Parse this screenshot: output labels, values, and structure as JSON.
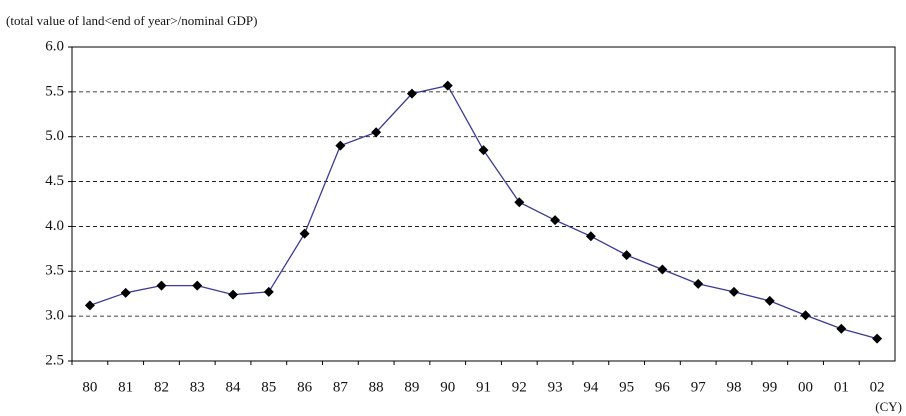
{
  "chart_data": {
    "type": "line",
    "y_axis_label": "(total value of land<end of year>/nominal GDP)",
    "x_axis_label": "(CY)",
    "categories": [
      "80",
      "81",
      "82",
      "83",
      "84",
      "85",
      "86",
      "87",
      "88",
      "89",
      "90",
      "91",
      "92",
      "93",
      "94",
      "95",
      "96",
      "97",
      "98",
      "99",
      "00",
      "01",
      "02"
    ],
    "values": [
      3.12,
      3.26,
      3.34,
      3.34,
      3.24,
      3.27,
      3.92,
      4.9,
      5.05,
      5.48,
      5.57,
      4.85,
      4.27,
      4.07,
      3.89,
      3.68,
      3.52,
      3.36,
      3.27,
      3.17,
      3.01,
      2.86,
      2.75
    ],
    "color": "#3b3b96",
    "marker_color": "#000000",
    "ylim": [
      2.5,
      6.0
    ],
    "yticks": [
      2.5,
      {
        "value": 3,
        "label": "3.0"
      },
      3.5,
      {
        "value": 4,
        "label": "4.0"
      },
      4.5,
      {
        "value": 5,
        "label": "5.0"
      },
      5.5,
      {
        "value": 6,
        "label": "6.0"
      }
    ],
    "grid": true
  }
}
